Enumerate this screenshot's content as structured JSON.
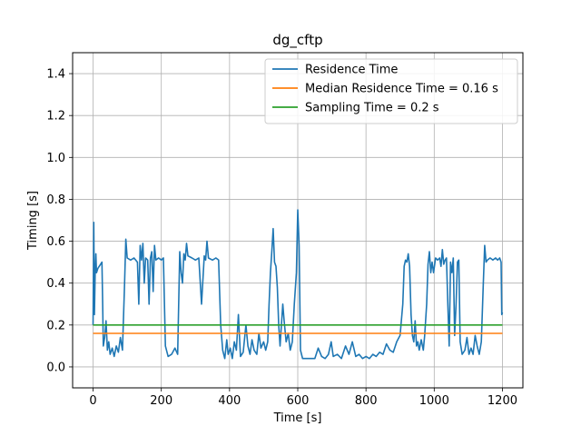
{
  "chart_data": {
    "type": "line",
    "title": "dg_cftp",
    "xlabel": "Time [s]",
    "ylabel": "Timing [s]",
    "xlim": [
      -60,
      1260
    ],
    "ylim": [
      -0.1,
      1.5
    ],
    "xticks": [
      0,
      200,
      400,
      600,
      800,
      1000,
      1200
    ],
    "xtick_labels": [
      "0",
      "200",
      "400",
      "600",
      "800",
      "1000",
      "1200"
    ],
    "yticks": [
      0.0,
      0.2,
      0.4,
      0.6,
      0.8,
      1.0,
      1.2,
      1.4
    ],
    "ytick_labels": [
      "0.0",
      "0.2",
      "0.4",
      "0.6",
      "0.8",
      "1.0",
      "1.2",
      "1.4"
    ],
    "grid": true,
    "legend_position": "top-right",
    "series": [
      {
        "name": "Residence Time",
        "color": "#1f77b4",
        "points": [
          [
            0,
            0.2
          ],
          [
            2,
            0.69
          ],
          [
            4,
            0.25
          ],
          [
            6,
            0.44
          ],
          [
            8,
            0.54
          ],
          [
            10,
            0.45
          ],
          [
            14,
            0.47
          ],
          [
            18,
            0.48
          ],
          [
            22,
            0.49
          ],
          [
            26,
            0.5
          ],
          [
            28,
            0.3
          ],
          [
            30,
            0.1
          ],
          [
            34,
            0.14
          ],
          [
            38,
            0.22
          ],
          [
            42,
            0.08
          ],
          [
            46,
            0.12
          ],
          [
            50,
            0.06
          ],
          [
            56,
            0.09
          ],
          [
            62,
            0.05
          ],
          [
            68,
            0.1
          ],
          [
            74,
            0.07
          ],
          [
            80,
            0.14
          ],
          [
            86,
            0.08
          ],
          [
            92,
            0.38
          ],
          [
            96,
            0.61
          ],
          [
            100,
            0.52
          ],
          [
            110,
            0.51
          ],
          [
            120,
            0.52
          ],
          [
            130,
            0.5
          ],
          [
            134,
            0.3
          ],
          [
            138,
            0.58
          ],
          [
            142,
            0.51
          ],
          [
            146,
            0.59
          ],
          [
            150,
            0.4
          ],
          [
            154,
            0.52
          ],
          [
            160,
            0.51
          ],
          [
            164,
            0.3
          ],
          [
            168,
            0.52
          ],
          [
            172,
            0.55
          ],
          [
            176,
            0.36
          ],
          [
            180,
            0.58
          ],
          [
            184,
            0.51
          ],
          [
            192,
            0.52
          ],
          [
            200,
            0.51
          ],
          [
            206,
            0.52
          ],
          [
            212,
            0.1
          ],
          [
            220,
            0.05
          ],
          [
            230,
            0.06
          ],
          [
            240,
            0.09
          ],
          [
            248,
            0.06
          ],
          [
            254,
            0.55
          ],
          [
            258,
            0.45
          ],
          [
            262,
            0.4
          ],
          [
            266,
            0.54
          ],
          [
            270,
            0.51
          ],
          [
            274,
            0.59
          ],
          [
            278,
            0.53
          ],
          [
            290,
            0.52
          ],
          [
            300,
            0.51
          ],
          [
            310,
            0.52
          ],
          [
            318,
            0.3
          ],
          [
            326,
            0.53
          ],
          [
            330,
            0.51
          ],
          [
            334,
            0.6
          ],
          [
            338,
            0.52
          ],
          [
            350,
            0.51
          ],
          [
            360,
            0.52
          ],
          [
            368,
            0.51
          ],
          [
            374,
            0.2
          ],
          [
            380,
            0.08
          ],
          [
            386,
            0.04
          ],
          [
            392,
            0.13
          ],
          [
            396,
            0.06
          ],
          [
            402,
            0.09
          ],
          [
            408,
            0.04
          ],
          [
            414,
            0.12
          ],
          [
            420,
            0.08
          ],
          [
            426,
            0.25
          ],
          [
            432,
            0.05
          ],
          [
            440,
            0.07
          ],
          [
            448,
            0.2
          ],
          [
            454,
            0.1
          ],
          [
            460,
            0.06
          ],
          [
            466,
            0.13
          ],
          [
            472,
            0.08
          ],
          [
            480,
            0.06
          ],
          [
            486,
            0.16
          ],
          [
            492,
            0.09
          ],
          [
            500,
            0.12
          ],
          [
            506,
            0.08
          ],
          [
            512,
            0.12
          ],
          [
            516,
            0.3
          ],
          [
            520,
            0.45
          ],
          [
            524,
            0.55
          ],
          [
            528,
            0.66
          ],
          [
            532,
            0.5
          ],
          [
            536,
            0.48
          ],
          [
            540,
            0.38
          ],
          [
            544,
            0.2
          ],
          [
            548,
            0.1
          ],
          [
            556,
            0.3
          ],
          [
            560,
            0.22
          ],
          [
            566,
            0.12
          ],
          [
            572,
            0.16
          ],
          [
            578,
            0.08
          ],
          [
            584,
            0.12
          ],
          [
            590,
            0.3
          ],
          [
            596,
            0.45
          ],
          [
            600,
            0.75
          ],
          [
            604,
            0.58
          ],
          [
            608,
            0.08
          ],
          [
            614,
            0.04
          ],
          [
            630,
            0.04
          ],
          [
            650,
            0.04
          ],
          [
            660,
            0.09
          ],
          [
            670,
            0.05
          ],
          [
            680,
            0.04
          ],
          [
            690,
            0.06
          ],
          [
            698,
            0.12
          ],
          [
            704,
            0.05
          ],
          [
            716,
            0.06
          ],
          [
            728,
            0.04
          ],
          [
            740,
            0.1
          ],
          [
            750,
            0.06
          ],
          [
            760,
            0.12
          ],
          [
            770,
            0.05
          ],
          [
            780,
            0.06
          ],
          [
            790,
            0.04
          ],
          [
            800,
            0.05
          ],
          [
            810,
            0.04
          ],
          [
            820,
            0.06
          ],
          [
            830,
            0.05
          ],
          [
            840,
            0.07
          ],
          [
            850,
            0.06
          ],
          [
            860,
            0.11
          ],
          [
            870,
            0.08
          ],
          [
            880,
            0.07
          ],
          [
            890,
            0.12
          ],
          [
            900,
            0.15
          ],
          [
            908,
            0.3
          ],
          [
            912,
            0.48
          ],
          [
            916,
            0.51
          ],
          [
            920,
            0.5
          ],
          [
            924,
            0.54
          ],
          [
            928,
            0.48
          ],
          [
            932,
            0.25
          ],
          [
            936,
            0.15
          ],
          [
            940,
            0.12
          ],
          [
            944,
            0.22
          ],
          [
            948,
            0.1
          ],
          [
            952,
            0.12
          ],
          [
            956,
            0.08
          ],
          [
            962,
            0.13
          ],
          [
            968,
            0.08
          ],
          [
            972,
            0.15
          ],
          [
            978,
            0.3
          ],
          [
            982,
            0.49
          ],
          [
            986,
            0.55
          ],
          [
            990,
            0.45
          ],
          [
            994,
            0.5
          ],
          [
            998,
            0.45
          ],
          [
            1004,
            0.52
          ],
          [
            1010,
            0.51
          ],
          [
            1016,
            0.52
          ],
          [
            1020,
            0.48
          ],
          [
            1024,
            0.56
          ],
          [
            1028,
            0.49
          ],
          [
            1032,
            0.51
          ],
          [
            1036,
            0.52
          ],
          [
            1040,
            0.3
          ],
          [
            1044,
            0.1
          ],
          [
            1048,
            0.5
          ],
          [
            1052,
            0.45
          ],
          [
            1056,
            0.52
          ],
          [
            1060,
            0.15
          ],
          [
            1064,
            0.3
          ],
          [
            1068,
            0.5
          ],
          [
            1072,
            0.51
          ],
          [
            1076,
            0.12
          ],
          [
            1082,
            0.06
          ],
          [
            1090,
            0.08
          ],
          [
            1096,
            0.14
          ],
          [
            1102,
            0.06
          ],
          [
            1108,
            0.09
          ],
          [
            1114,
            0.06
          ],
          [
            1120,
            0.15
          ],
          [
            1126,
            0.1
          ],
          [
            1132,
            0.06
          ],
          [
            1138,
            0.12
          ],
          [
            1144,
            0.4
          ],
          [
            1148,
            0.58
          ],
          [
            1152,
            0.5
          ],
          [
            1156,
            0.51
          ],
          [
            1164,
            0.52
          ],
          [
            1172,
            0.51
          ],
          [
            1180,
            0.52
          ],
          [
            1186,
            0.51
          ],
          [
            1192,
            0.52
          ],
          [
            1196,
            0.5
          ],
          [
            1198,
            0.25
          ],
          [
            1200,
            0.26
          ]
        ]
      },
      {
        "name": "Median Residence Time = 0.16 s",
        "color": "#ff7f0e",
        "points": [
          [
            0,
            0.16
          ],
          [
            1200,
            0.16
          ]
        ]
      },
      {
        "name": "Sampling Time = 0.2 s",
        "color": "#2ca02c",
        "points": [
          [
            0,
            0.2
          ],
          [
            1200,
            0.2
          ]
        ]
      }
    ]
  }
}
